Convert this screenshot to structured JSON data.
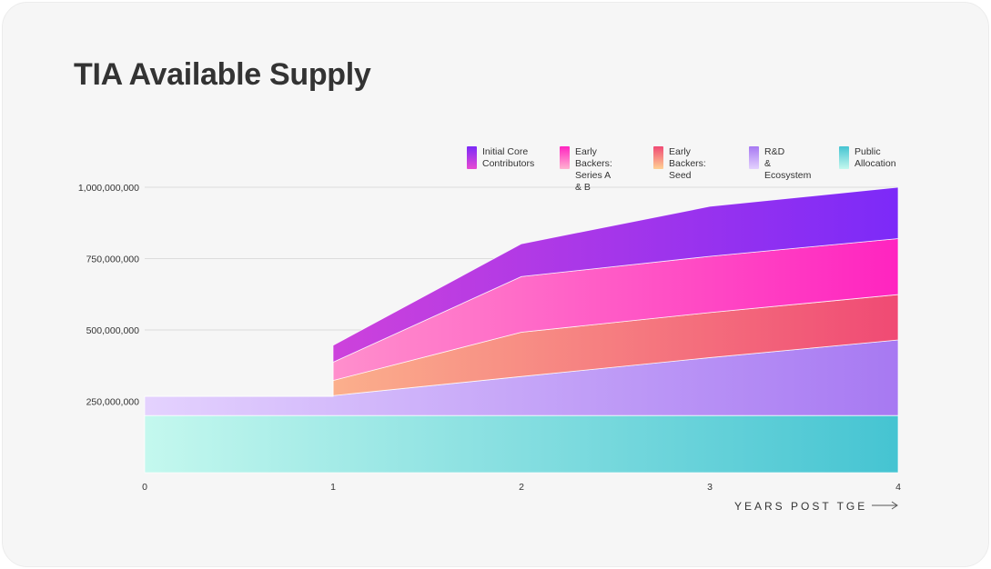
{
  "title": "TIA Available Supply",
  "chart_data": {
    "type": "area",
    "stacked": true,
    "title": "TIA Available Supply",
    "xlabel": "YEARS POST TGE",
    "ylabel": "",
    "x": [
      0,
      1,
      1,
      2,
      3,
      4
    ],
    "x_ticks": [
      "0",
      "1",
      "2",
      "3",
      "4"
    ],
    "xlim": [
      0,
      4
    ],
    "y_ticks": [
      "250,000,000",
      "500,000,000",
      "750,000,000",
      "1,000,000,000"
    ],
    "ylim": [
      0,
      1000000000
    ],
    "grid": true,
    "legend_position": "top-right",
    "series": [
      {
        "name": "Public\nAllocation",
        "values": [
          200000000,
          200000000,
          200000000,
          200000000,
          200000000,
          200000000
        ],
        "color_start": "#c4f8ee",
        "color_end": "#45c4d2"
      },
      {
        "name": "R&D\n& Ecosystem",
        "values": [
          67000000,
          67000000,
          70000000,
          137000000,
          203000000,
          265000000
        ],
        "color_start": "#e4d2fe",
        "color_end": "#a779f2"
      },
      {
        "name": "Early Backers:\nSeed",
        "values": [
          0,
          0,
          53000000,
          155000000,
          158000000,
          159000000
        ],
        "color_start": "#ffd194",
        "color_end": "#f04a74"
      },
      {
        "name": "Early Backers:\nSeries A & B",
        "values": [
          0,
          0,
          64000000,
          195000000,
          197000000,
          196000000
        ],
        "color_start": "#ffb3d0",
        "color_end": "#ff24c0"
      },
      {
        "name": "Initial Core\nContributors",
        "values": [
          0,
          0,
          59000000,
          115000000,
          175000000,
          180000000
        ],
        "color_start": "#e84ad2",
        "color_end": "#7c2af8"
      }
    ]
  }
}
